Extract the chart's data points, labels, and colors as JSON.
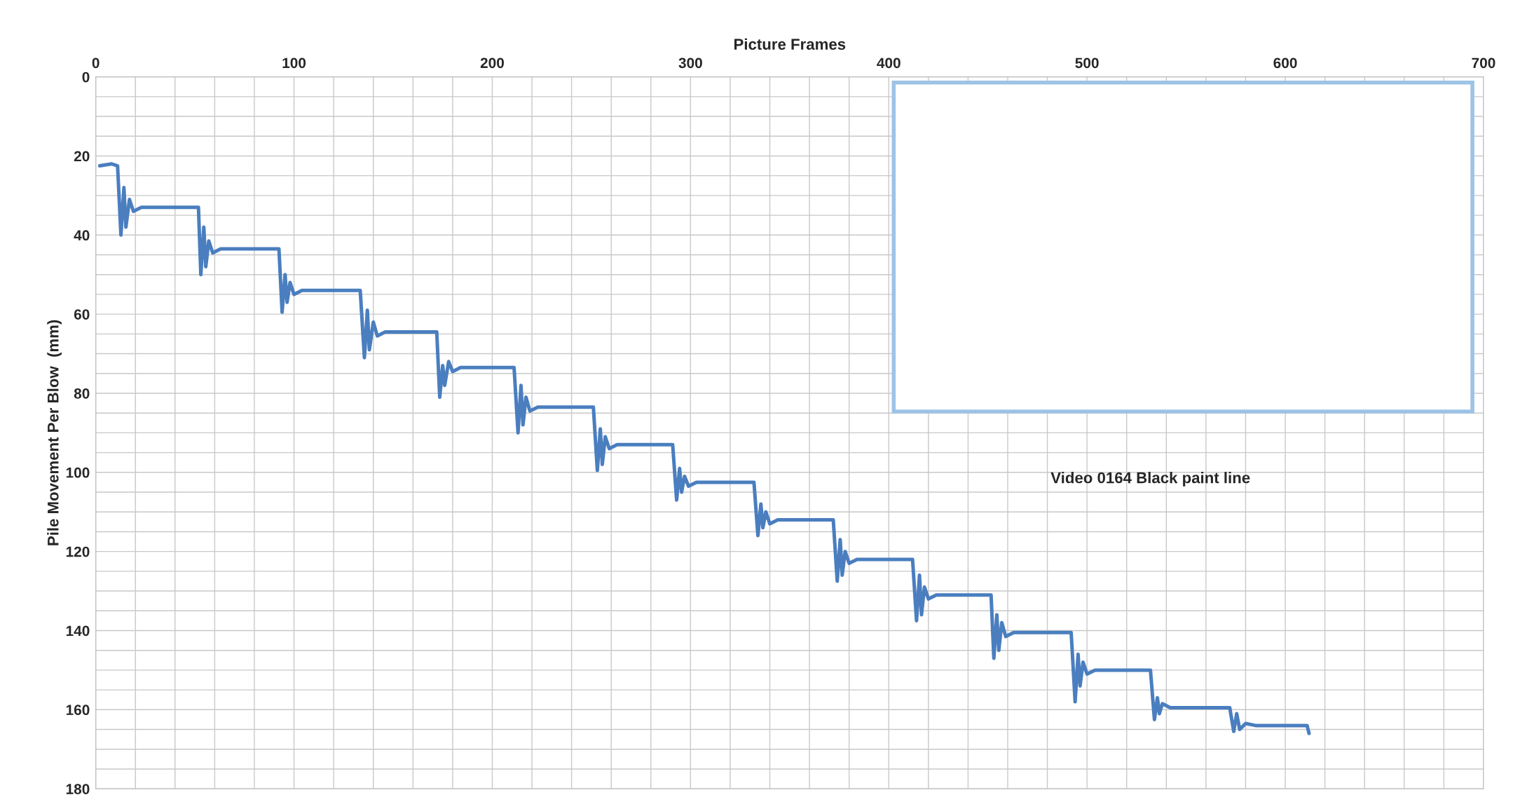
{
  "chart_data": {
    "type": "line",
    "xlabel": "Picture Frames",
    "ylabel": "Pile Movement Per Blow  (mm)",
    "xlim": [
      0,
      700
    ],
    "xticks": [
      0,
      100,
      200,
      300,
      400,
      500,
      600,
      700
    ],
    "ylim": [
      180,
      0
    ],
    "yticks": [
      0,
      20,
      40,
      60,
      80,
      100,
      120,
      140,
      160,
      180
    ],
    "grid": true,
    "legend": false,
    "marker": "none",
    "line_style": "solid",
    "annotations": [
      "Video 0164 Black paint line"
    ],
    "series": [
      {
        "color": "#4a7ebf",
        "x": [
          2,
          8,
          11,
          12.7,
          14.2,
          15.2,
          17,
          19,
          23,
          51.8,
          53,
          54.5,
          55.5,
          57,
          59,
          63,
          92.4,
          94,
          95.5,
          96.5,
          98,
          100,
          104,
          133.4,
          135.5,
          137,
          138,
          140,
          142,
          146,
          172,
          173.5,
          175,
          176,
          178,
          180,
          184,
          211,
          213,
          214.5,
          215.5,
          217,
          219,
          223,
          251,
          253,
          254.5,
          255.5,
          257,
          259,
          263,
          291,
          293,
          294.5,
          295.5,
          297,
          299,
          303,
          332,
          334,
          335.5,
          336.5,
          338,
          340,
          344,
          372,
          374,
          375.5,
          376.5,
          378,
          380,
          384,
          412,
          414,
          415.5,
          416.5,
          418,
          420,
          424,
          451.6,
          453,
          454.5,
          455.5,
          457,
          459,
          463,
          492,
          494,
          495.5,
          496.5,
          498,
          500,
          504,
          532,
          534,
          535.5,
          536.5,
          538,
          542,
          572,
          574,
          575.5,
          577,
          580,
          585,
          611,
          612
        ],
        "values": [
          22.5,
          22,
          22.5,
          40,
          28,
          38,
          31,
          34,
          33,
          33,
          50,
          38,
          48,
          41.5,
          44.5,
          43.5,
          43.5,
          59.5,
          50,
          57,
          52,
          55,
          54,
          54,
          71,
          59,
          69,
          62,
          65.5,
          64.5,
          64.5,
          81,
          73,
          78,
          72,
          74.5,
          73.5,
          73.5,
          90,
          78,
          88,
          81,
          84.5,
          83.5,
          83.5,
          99.5,
          89,
          98,
          91,
          94,
          93,
          93,
          107,
          99,
          105,
          101,
          103.5,
          102.5,
          102.5,
          116,
          108,
          114,
          110,
          113,
          112,
          112,
          127.5,
          117,
          126,
          120,
          123,
          122,
          122,
          137.5,
          126,
          136,
          129,
          132,
          131,
          131,
          147,
          136,
          145,
          138,
          141.5,
          140.5,
          140.5,
          158,
          146,
          154,
          148,
          151,
          150,
          150,
          162.5,
          157,
          161,
          158.5,
          159.5,
          159.5,
          165.5,
          161,
          165,
          163.5,
          164,
          164,
          166
        ]
      }
    ]
  }
}
